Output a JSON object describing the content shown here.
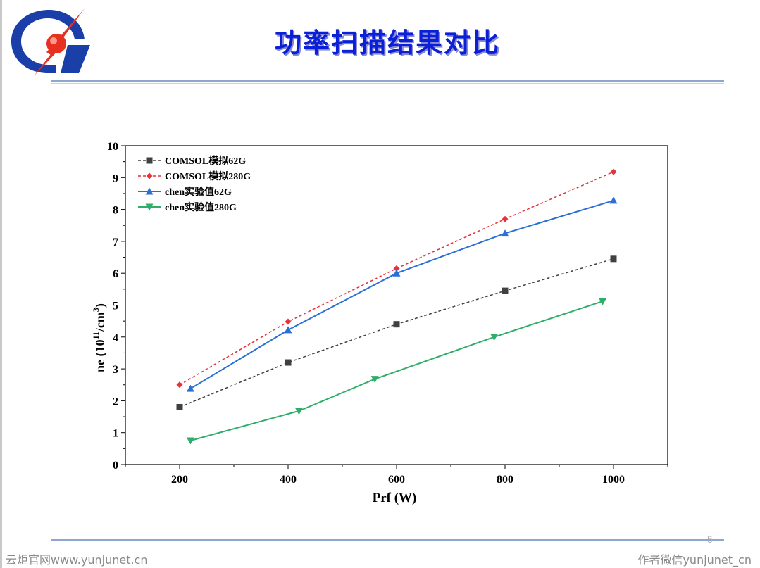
{
  "slide": {
    "title": "功率扫描结果对比",
    "page_number": "5"
  },
  "footer": {
    "left": "云炬官网www.yunjunet.cn",
    "right": "作者微信yunjunet_cn"
  },
  "colors": {
    "title": "#0a1fd8",
    "rule": "#8fa6cf",
    "logo_blue": "#1a3fa8",
    "logo_red": "#e83020"
  },
  "chart_data": {
    "type": "line",
    "xlabel": "Prf (W)",
    "ylabel_main": "ne  (10",
    "ylabel_sup1": "11",
    "ylabel_mid": "/cm",
    "ylabel_sup2": "3",
    "ylabel_end": ")",
    "xlim": [
      100,
      1100
    ],
    "ylim": [
      0,
      10
    ],
    "xticks": [
      200,
      400,
      600,
      800,
      1000
    ],
    "yticks": [
      0,
      1,
      2,
      3,
      4,
      5,
      6,
      7,
      8,
      9,
      10
    ],
    "legend_position": "top-left",
    "series": [
      {
        "name": "COMSOL模拟62G",
        "color": "#404040",
        "dash": "4,3",
        "marker": "square",
        "x": [
          200,
          400,
          600,
          800,
          1000
        ],
        "y": [
          1.8,
          3.2,
          4.4,
          5.45,
          6.45
        ]
      },
      {
        "name": "COMSOL模拟280G",
        "color": "#e8313b",
        "dash": "4,3",
        "marker": "diamond",
        "x": [
          200,
          400,
          600,
          800,
          1000
        ],
        "y": [
          2.5,
          4.48,
          6.15,
          7.7,
          9.18
        ]
      },
      {
        "name": "chen实验值62G",
        "color": "#2a6fd6",
        "dash": "",
        "marker": "triangle-up",
        "x": [
          220,
          400,
          600,
          800,
          1000
        ],
        "y": [
          2.38,
          4.22,
          6.0,
          7.25,
          8.28
        ]
      },
      {
        "name": "chen实验值280G",
        "color": "#2fae6a",
        "dash": "",
        "marker": "triangle-down",
        "x": [
          220,
          420,
          560,
          780,
          980
        ],
        "y": [
          0.75,
          1.68,
          2.68,
          4.0,
          5.12
        ]
      }
    ]
  }
}
